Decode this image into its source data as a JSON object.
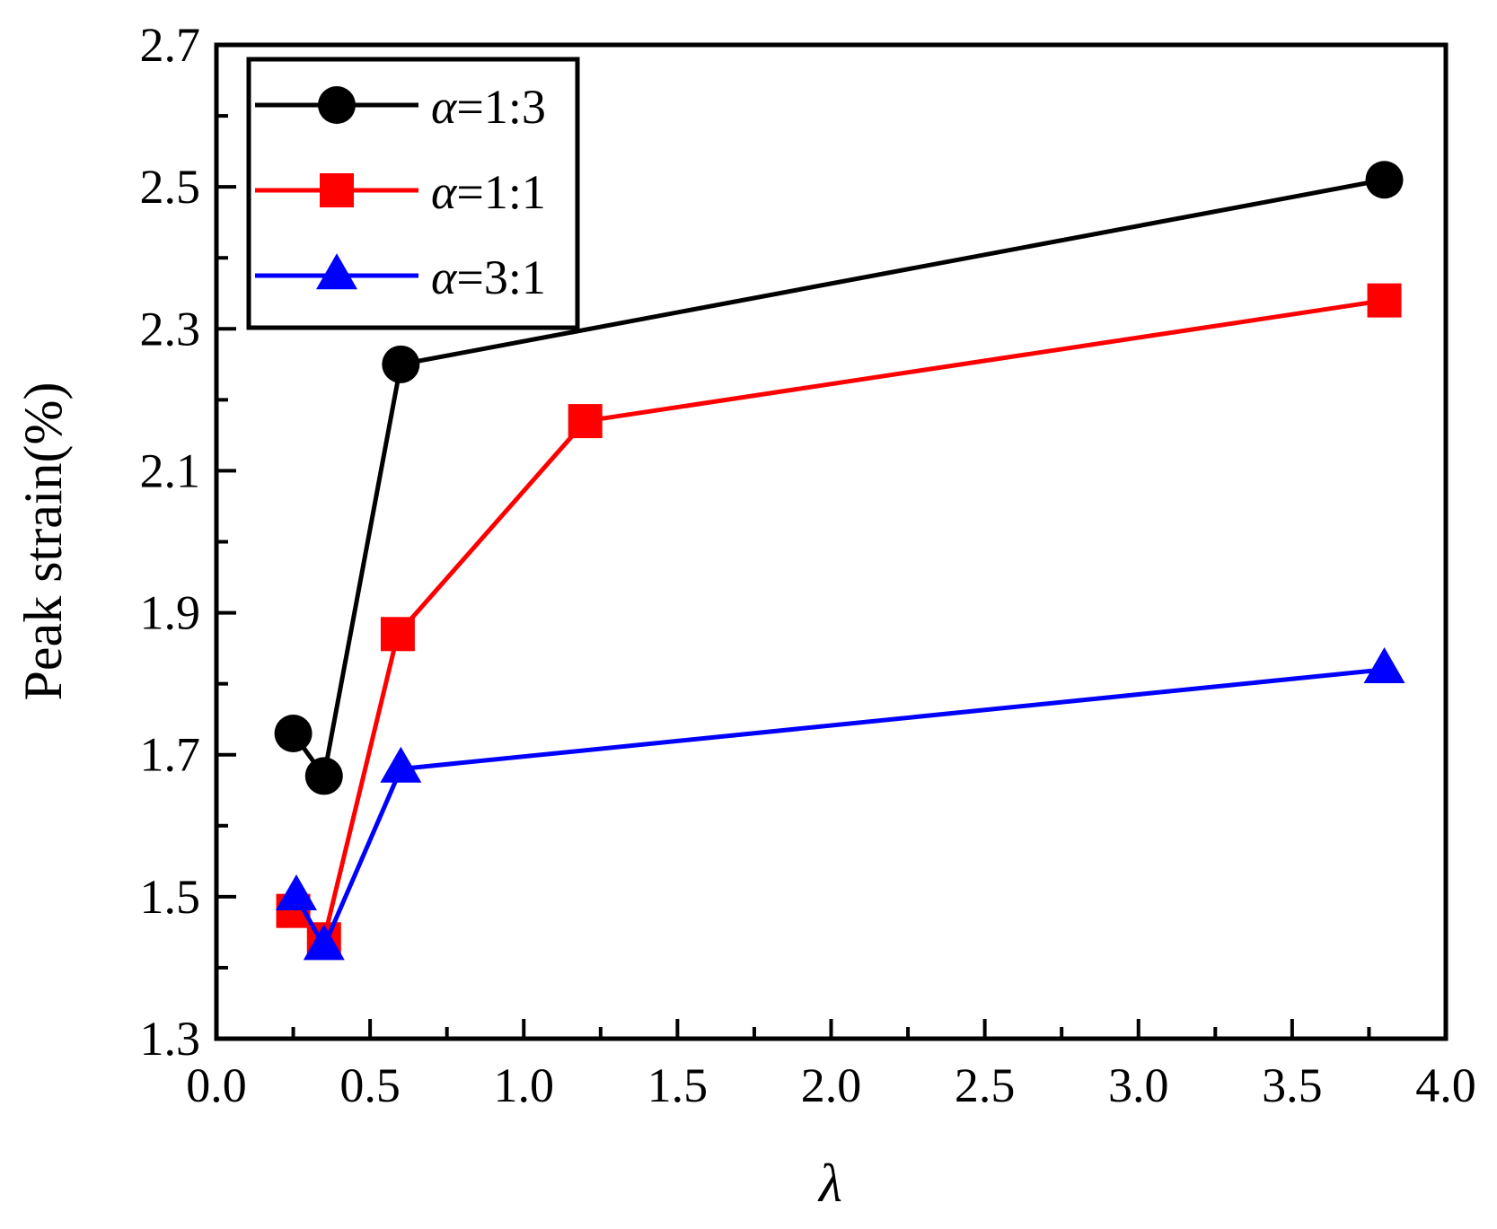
{
  "chart_data": {
    "type": "line",
    "title": "",
    "xlabel": "λ",
    "ylabel": "Peak strain(%)",
    "xlim": [
      0.0,
      4.0
    ],
    "ylim": [
      1.3,
      2.7
    ],
    "x_major_ticks": [
      0.0,
      0.5,
      1.0,
      1.5,
      2.0,
      2.5,
      3.0,
      3.5,
      4.0
    ],
    "x_tick_labels": [
      "0.0",
      "0.5",
      "1.0",
      "1.5",
      "2.0",
      "2.5",
      "3.0",
      "3.5",
      "4.0"
    ],
    "y_major_ticks": [
      1.3,
      1.5,
      1.7,
      1.9,
      2.1,
      2.3,
      2.5,
      2.7
    ],
    "y_tick_labels": [
      "1.3",
      "1.5",
      "1.7",
      "1.9",
      "2.1",
      "2.3",
      "2.5",
      "2.7"
    ],
    "grid": false,
    "legend_position": "top-left",
    "series": [
      {
        "name": "α=1:3",
        "name_symbol": "α",
        "name_rest": "=1:3",
        "color": "#000000",
        "marker": "circle",
        "x": [
          0.25,
          0.35,
          0.6,
          3.8
        ],
        "y": [
          1.73,
          1.67,
          2.25,
          2.51
        ]
      },
      {
        "name": "α=1:1",
        "name_symbol": "α",
        "name_rest": "=1:1",
        "color": "#ff0000",
        "marker": "square",
        "x": [
          0.25,
          0.35,
          0.59,
          1.2,
          3.8
        ],
        "y": [
          1.48,
          1.44,
          1.87,
          2.17,
          2.34
        ]
      },
      {
        "name": "α=3:1",
        "name_symbol": "α",
        "name_rest": "=3:1",
        "color": "#0000ff",
        "marker": "triangle",
        "x": [
          0.26,
          0.35,
          0.6,
          3.8
        ],
        "y": [
          1.5,
          1.43,
          1.68,
          1.82
        ]
      }
    ]
  }
}
